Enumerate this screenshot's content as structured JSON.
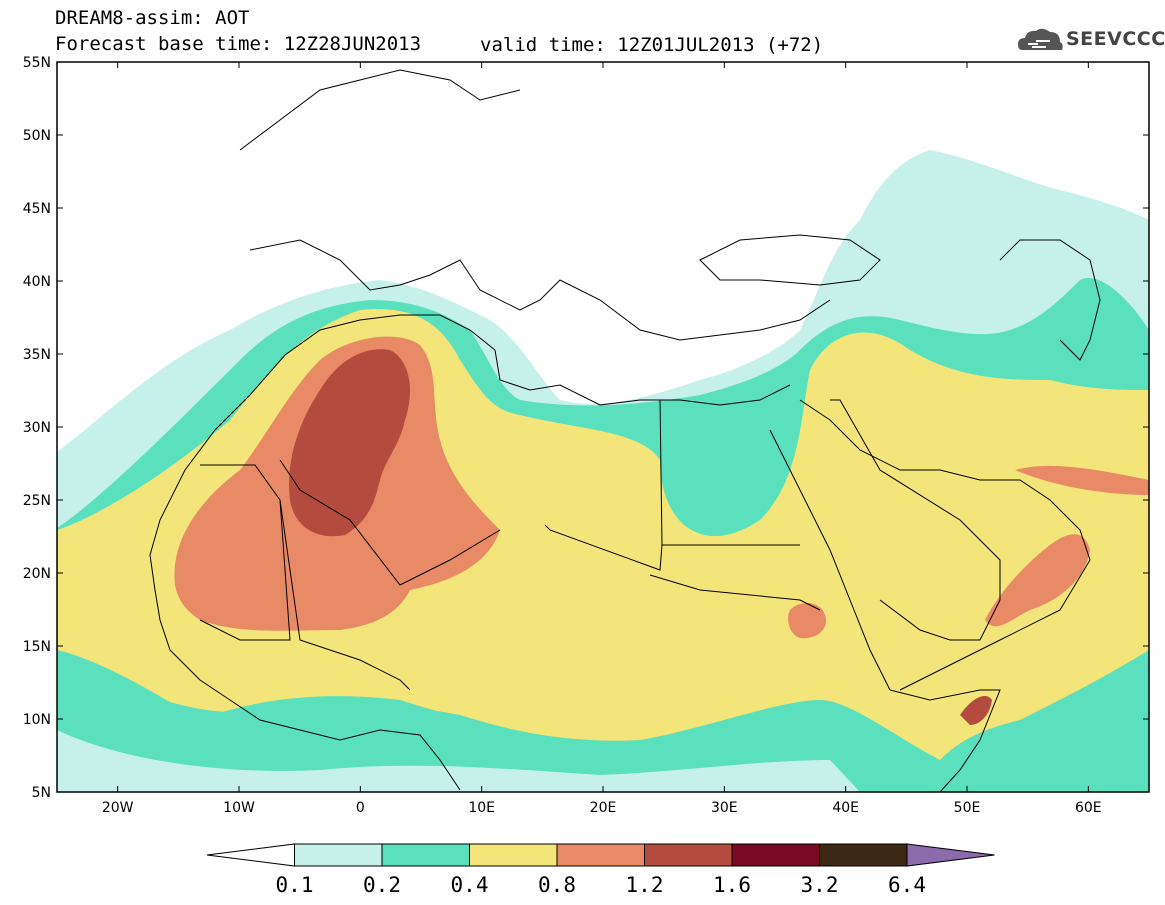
{
  "header": {
    "title": "DREAM8-assim: AOT",
    "base_time": "Forecast base time: 12Z28JUN2013",
    "valid_time": "valid time: 12Z01JUL2013 (+72)"
  },
  "logo": {
    "text": "SEEVCCC",
    "icon": "cloud-icon"
  },
  "map": {
    "lat_ticks": [
      "55N",
      "50N",
      "45N",
      "40N",
      "35N",
      "30N",
      "25N",
      "20N",
      "15N",
      "10N",
      "5N"
    ],
    "lon_ticks": [
      "20W",
      "10W",
      "0",
      "10E",
      "20E",
      "30E",
      "40E",
      "50E",
      "60E"
    ],
    "lat_range": [
      5,
      55
    ],
    "lon_range": [
      -25,
      65
    ],
    "colors": {
      "land_line": "#000000",
      "background": "#ffffff"
    }
  },
  "colorbar": {
    "labels": [
      "0.1",
      "0.2",
      "0.4",
      "0.8",
      "1.2",
      "1.6",
      "3.2",
      "6.4"
    ],
    "colors": [
      "#ffffff",
      "#c6f1ea",
      "#5ae0bc",
      "#f4e57a",
      "#e88a66",
      "#b34b3e",
      "#7a0a24",
      "#3d2815",
      "#8b6bab"
    ]
  }
}
